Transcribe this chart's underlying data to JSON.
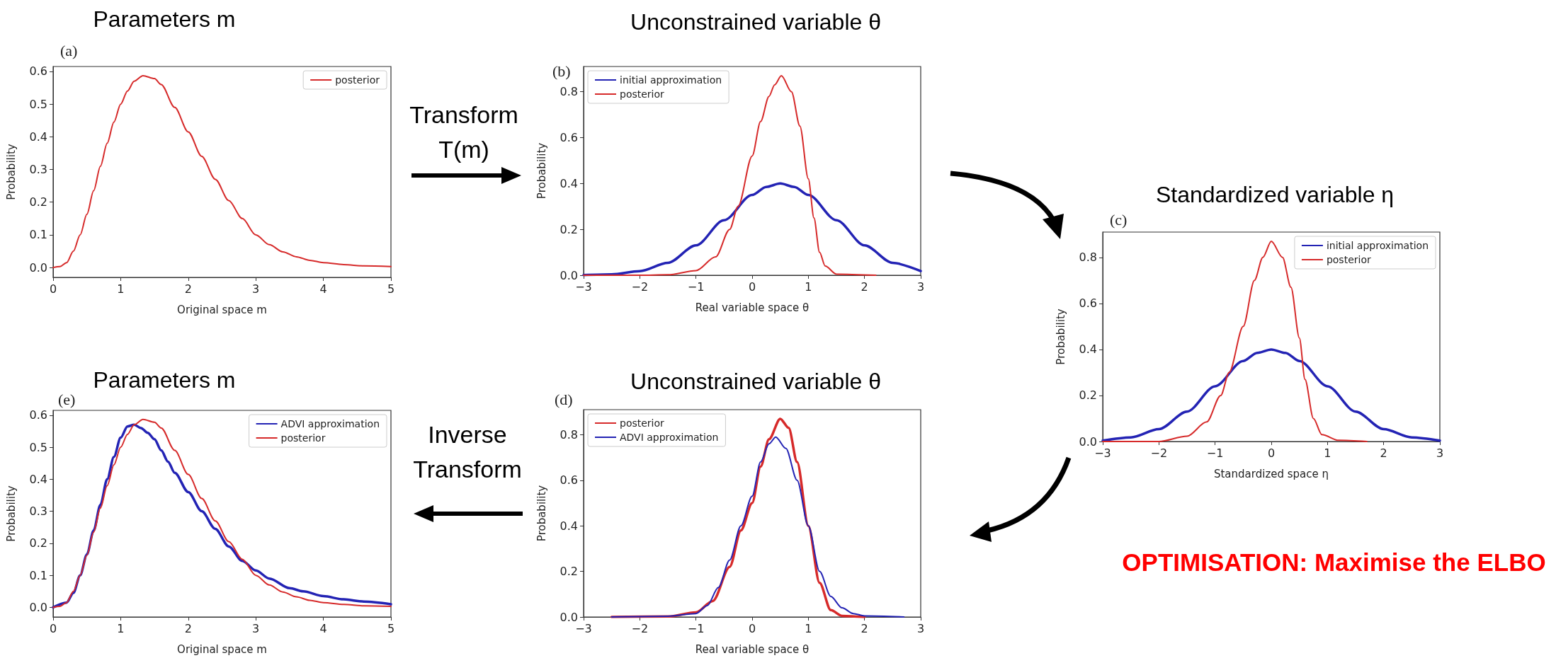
{
  "chart_data": [
    {
      "type": "line",
      "title": "Parameters m",
      "subtitle": "(a)",
      "xlabel": "Original space m",
      "ylabel": "Probability",
      "legend": "top right",
      "annotations": [
        "Transform T(m)"
      ],
      "xlim": [
        0,
        5
      ],
      "xticks": [
        0,
        1,
        2,
        3,
        4,
        5
      ],
      "ylim": [
        -0.03,
        0.615
      ],
      "yticks": [
        {
          "value": 0,
          "label": "0.0"
        },
        {
          "value": 0.1,
          "label": "0.1"
        },
        {
          "value": 0.2,
          "label": "0.2"
        },
        {
          "value": 0.3,
          "label": "0.3"
        },
        {
          "value": 0.4,
          "label": "0.4"
        },
        {
          "value": 0.5,
          "label": "0.5"
        },
        {
          "value": 0.6,
          "label": "0.6"
        }
      ],
      "series": [
        {
          "name": "posterior",
          "color": "#d62a2a",
          "x": [
            0,
            0.1,
            0.2,
            0.3,
            0.4,
            0.5,
            0.6,
            0.7,
            0.8,
            0.9,
            1.0,
            1.1,
            1.2,
            1.33,
            1.5,
            1.6,
            1.8,
            2.0,
            2.2,
            2.4,
            2.6,
            2.8,
            3.0,
            3.2,
            3.4,
            3.6,
            3.8,
            4.0,
            4.3,
            4.6,
            5.0
          ],
          "values": [
            0,
            0.003,
            0.015,
            0.05,
            0.1,
            0.163,
            0.235,
            0.31,
            0.38,
            0.445,
            0.5,
            0.54,
            0.57,
            0.587,
            0.578,
            0.56,
            0.49,
            0.415,
            0.34,
            0.27,
            0.205,
            0.15,
            0.1,
            0.07,
            0.048,
            0.033,
            0.022,
            0.015,
            0.009,
            0.005,
            0.003
          ]
        }
      ]
    },
    {
      "type": "line",
      "title": "Unconstrained variable θ",
      "subtitle": "(b)",
      "xlabel": "Real variable space θ",
      "ylabel": "Probability",
      "legend": "top left",
      "xlim": [
        -3,
        3
      ],
      "xticks": [
        {
          "value": -3,
          "label": "−3"
        },
        {
          "value": -2,
          "label": "−2"
        },
        {
          "value": -1,
          "label": "−1"
        },
        0,
        1,
        2,
        3
      ],
      "ylim": [
        0,
        0.91
      ],
      "yticks": [
        {
          "value": 0,
          "label": "0.0"
        },
        {
          "value": 0.2,
          "label": "0.2"
        },
        {
          "value": 0.4,
          "label": "0.4"
        },
        {
          "value": 0.6,
          "label": "0.6"
        },
        {
          "value": 0.8,
          "label": "0.8"
        }
      ],
      "series": [
        {
          "name": "initial approximation",
          "color": "#2323b4",
          "x": [
            -3,
            -2.5,
            -2,
            -1.5,
            -1,
            -0.5,
            0,
            0.25,
            0.5,
            0.75,
            1,
            1.5,
            2,
            2.5,
            3
          ],
          "values": [
            0.001,
            0.004,
            0.018,
            0.054,
            0.13,
            0.24,
            0.35,
            0.385,
            0.4,
            0.385,
            0.35,
            0.24,
            0.13,
            0.054,
            0.018
          ]
        },
        {
          "name": "posterior",
          "color": "#d62a2a",
          "x": [
            -3,
            -2,
            -1.5,
            -1,
            -0.65,
            -0.4,
            -0.25,
            0,
            0.15,
            0.3,
            0.4,
            0.52,
            0.7,
            0.85,
            1,
            1.1,
            1.2,
            1.3,
            1.5,
            2.2
          ],
          "values": [
            0,
            0,
            0.002,
            0.02,
            0.08,
            0.2,
            0.3,
            0.52,
            0.67,
            0.78,
            0.83,
            0.87,
            0.8,
            0.65,
            0.42,
            0.25,
            0.1,
            0.04,
            0.005,
            0
          ]
        }
      ]
    },
    {
      "type": "line",
      "title": "Standardized variable η",
      "subtitle": "(c)",
      "xlabel": "Standardized space η",
      "ylabel": "Probability",
      "legend": "top right",
      "annotations": [
        "OPTIMISATION: Maximise the ELBO"
      ],
      "xlim": [
        -3,
        3
      ],
      "xticks": [
        {
          "value": -3,
          "label": "−3"
        },
        {
          "value": -2,
          "label": "−2"
        },
        {
          "value": -1,
          "label": "−1"
        },
        0,
        1,
        2,
        3
      ],
      "ylim": [
        0,
        0.91
      ],
      "yticks": [
        {
          "value": 0,
          "label": "0.0"
        },
        {
          "value": 0.2,
          "label": "0.2"
        },
        {
          "value": 0.4,
          "label": "0.4"
        },
        {
          "value": 0.6,
          "label": "0.6"
        },
        {
          "value": 0.8,
          "label": "0.8"
        }
      ],
      "series": [
        {
          "name": "initial approximation",
          "color": "#2323b4",
          "x": [
            -3,
            -2.5,
            -2,
            -1.5,
            -1,
            -0.5,
            -0.25,
            0,
            0.25,
            0.5,
            1,
            1.5,
            2,
            2.5,
            3
          ],
          "values": [
            0.004,
            0.018,
            0.054,
            0.13,
            0.24,
            0.35,
            0.385,
            0.4,
            0.385,
            0.35,
            0.24,
            0.13,
            0.054,
            0.018,
            0.004
          ]
        },
        {
          "name": "posterior",
          "color": "#d62a2a",
          "x": [
            -3,
            -2,
            -1.5,
            -1.15,
            -0.9,
            -0.75,
            -0.5,
            -0.3,
            -0.15,
            0,
            0.2,
            0.35,
            0.5,
            0.6,
            0.75,
            0.9,
            1.2,
            1.7
          ],
          "values": [
            0,
            0,
            0.023,
            0.085,
            0.2,
            0.3,
            0.5,
            0.7,
            0.8,
            0.87,
            0.8,
            0.67,
            0.45,
            0.27,
            0.1,
            0.03,
            0.005,
            0
          ]
        }
      ]
    },
    {
      "type": "line",
      "title": "Unconstrained variable θ",
      "subtitle": "(d)",
      "xlabel": "Real variable space θ",
      "ylabel": "Probability",
      "legend": "top left",
      "xlim": [
        -3,
        3
      ],
      "xticks": [
        {
          "value": -3,
          "label": "−3"
        },
        {
          "value": -2,
          "label": "−2"
        },
        {
          "value": -1,
          "label": "−1"
        },
        0,
        1,
        2,
        3
      ],
      "ylim": [
        0,
        0.91
      ],
      "yticks": [
        {
          "value": 0,
          "label": "0.0"
        },
        {
          "value": 0.2,
          "label": "0.2"
        },
        {
          "value": 0.4,
          "label": "0.4"
        },
        {
          "value": 0.6,
          "label": "0.6"
        },
        {
          "value": 0.8,
          "label": "0.8"
        }
      ],
      "series": [
        {
          "name": "posterior",
          "color": "#d62a2a",
          "x": [
            -2.5,
            -1.5,
            -1,
            -0.7,
            -0.4,
            -0.2,
            0,
            0.15,
            0.3,
            0.5,
            0.65,
            0.8,
            1,
            1.2,
            1.4,
            1.6,
            2
          ],
          "values": [
            0,
            0.002,
            0.02,
            0.07,
            0.22,
            0.38,
            0.5,
            0.66,
            0.78,
            0.87,
            0.83,
            0.68,
            0.4,
            0.15,
            0.03,
            0.005,
            0
          ]
        },
        {
          "name": "ADVI approximation",
          "color": "#2323b4",
          "x": [
            -2.5,
            -1.5,
            -1,
            -0.8,
            -0.6,
            -0.4,
            -0.2,
            0,
            0.15,
            0.3,
            0.42,
            0.6,
            0.8,
            1,
            1.2,
            1.4,
            1.6,
            1.8,
            2,
            2.7
          ],
          "values": [
            0,
            0.003,
            0.015,
            0.05,
            0.13,
            0.25,
            0.4,
            0.53,
            0.68,
            0.76,
            0.79,
            0.74,
            0.6,
            0.4,
            0.2,
            0.09,
            0.04,
            0.015,
            0.005,
            0
          ]
        }
      ]
    },
    {
      "type": "line",
      "title": "Parameters m",
      "subtitle": "(e)",
      "xlabel": "Original space m",
      "ylabel": "Probability",
      "legend": "top right",
      "annotations": [
        "Inverse Transform"
      ],
      "xlim": [
        0,
        5
      ],
      "xticks": [
        0,
        1,
        2,
        3,
        4,
        5
      ],
      "ylim": [
        -0.03,
        0.615
      ],
      "yticks": [
        {
          "value": 0,
          "label": "0.0"
        },
        {
          "value": 0.1,
          "label": "0.1"
        },
        {
          "value": 0.2,
          "label": "0.2"
        },
        {
          "value": 0.3,
          "label": "0.3"
        },
        {
          "value": 0.4,
          "label": "0.4"
        },
        {
          "value": 0.5,
          "label": "0.5"
        },
        {
          "value": 0.6,
          "label": "0.6"
        }
      ],
      "series": [
        {
          "name": "ADVI approximation",
          "color": "#2323b4",
          "x": [
            0,
            0.2,
            0.3,
            0.4,
            0.5,
            0.6,
            0.7,
            0.8,
            0.9,
            1.0,
            1.1,
            1.2,
            1.3,
            1.4,
            1.5,
            1.6,
            1.7,
            1.8,
            2.0,
            2.2,
            2.4,
            2.6,
            2.8,
            3.0,
            3.2,
            3.5,
            3.7,
            4.0,
            4.3,
            4.6,
            5.0
          ],
          "values": [
            0,
            0.015,
            0.045,
            0.1,
            0.165,
            0.24,
            0.32,
            0.4,
            0.47,
            0.53,
            0.565,
            0.57,
            0.56,
            0.545,
            0.525,
            0.49,
            0.455,
            0.42,
            0.36,
            0.3,
            0.245,
            0.19,
            0.145,
            0.115,
            0.09,
            0.06,
            0.05,
            0.035,
            0.025,
            0.018,
            0.01
          ]
        },
        {
          "name": "posterior",
          "color": "#d62a2a",
          "x": [
            0,
            0.1,
            0.2,
            0.3,
            0.4,
            0.5,
            0.6,
            0.7,
            0.8,
            0.9,
            1.0,
            1.1,
            1.2,
            1.33,
            1.5,
            1.6,
            1.8,
            2.0,
            2.2,
            2.4,
            2.6,
            2.8,
            3.0,
            3.2,
            3.4,
            3.6,
            3.8,
            4.0,
            4.3,
            4.6,
            5.0
          ],
          "values": [
            0,
            0.003,
            0.015,
            0.05,
            0.1,
            0.163,
            0.235,
            0.31,
            0.38,
            0.445,
            0.5,
            0.54,
            0.57,
            0.587,
            0.578,
            0.56,
            0.49,
            0.415,
            0.34,
            0.27,
            0.205,
            0.15,
            0.1,
            0.07,
            0.048,
            0.033,
            0.022,
            0.015,
            0.009,
            0.005,
            0.003
          ]
        }
      ]
    }
  ]
}
